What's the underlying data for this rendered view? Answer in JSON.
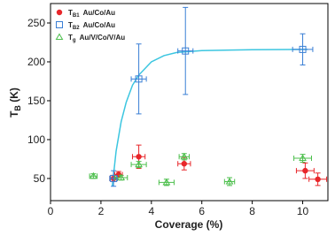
{
  "chart_data": {
    "type": "scatter",
    "xlabel": "Coverage (%)",
    "ylabel": {
      "main": "T",
      "sub": "B",
      "unit": " (K)"
    },
    "xlim": [
      0,
      11
    ],
    "ylim": [
      21.5,
      275
    ],
    "xticks": [
      0,
      2,
      4,
      6,
      8,
      10
    ],
    "yticks": [
      50,
      100,
      150,
      200,
      250
    ],
    "legend": "top-left",
    "fit": {
      "color": "#3cc6e0",
      "x": [
        2.45,
        2.6,
        2.8,
        3.0,
        3.25,
        3.5,
        4.0,
        4.5,
        5.0,
        6.0,
        8.0,
        10.2
      ],
      "values": [
        40,
        85,
        123,
        148,
        170,
        183,
        200,
        208,
        212,
        214.5,
        215.5,
        216
      ]
    },
    "series": [
      {
        "symbol": {
          "main": "T",
          "sub": "B1"
        },
        "name": "Au/Co/Au",
        "marker": "circle",
        "color": "#e8262a",
        "x": [
          2.5,
          2.7,
          3.5,
          5.3,
          10.1,
          10.6
        ],
        "values": [
          50,
          55,
          78,
          69,
          60,
          49
        ],
        "errors": [
          4,
          4,
          15,
          8,
          10,
          8
        ],
        "xerrors": [
          0.15,
          0.15,
          0.25,
          0.25,
          0.35,
          0.35
        ]
      },
      {
        "symbol": {
          "main": "T",
          "sub": "B2"
        },
        "name": "Au/Co/Au",
        "marker": "square",
        "color": "#3a7fd5",
        "x": [
          2.5,
          3.5,
          5.35,
          10.0
        ],
        "values": [
          50,
          178,
          214,
          216
        ],
        "errors": [
          10,
          45,
          56,
          20
        ],
        "xerrors": [
          0.15,
          0.3,
          0.3,
          0.4
        ]
      },
      {
        "symbol": {
          "main": "T",
          "sub": "g"
        },
        "name": "Au/V/Co/V/Au",
        "marker": "triangle",
        "color": "#4cbf4c",
        "x": [
          1.7,
          2.8,
          3.5,
          4.6,
          5.3,
          7.1,
          10.0
        ],
        "values": [
          53,
          51,
          68,
          45,
          78,
          46,
          76
        ],
        "errors": [
          3,
          3,
          4,
          4,
          4,
          5,
          5
        ],
        "xerrors": [
          0.15,
          0.25,
          0.3,
          0.3,
          0.2,
          0.2,
          0.35
        ]
      }
    ]
  }
}
